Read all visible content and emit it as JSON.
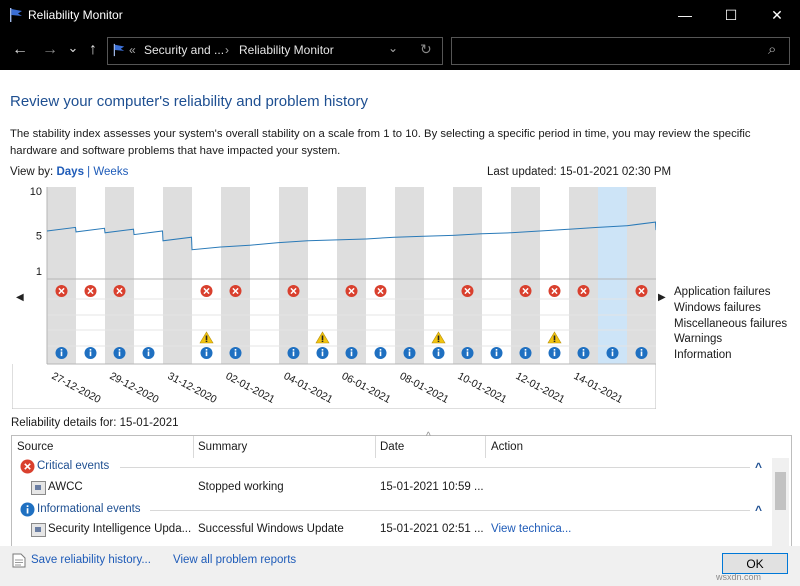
{
  "window": {
    "title": "Reliability Monitor",
    "minimize": "—",
    "maximize": "☐",
    "close": "✕"
  },
  "nav": {
    "back": "←",
    "forward": "→",
    "recent": "⌄",
    "up": "↑",
    "chevrons": "«",
    "crumb1": "Security and ...",
    "sep": "›",
    "crumb2": "Reliability Monitor",
    "dropdown": "⌄",
    "refresh": "↻",
    "search_icon": "⌕"
  },
  "page": {
    "heading": "Review your computer's reliability and problem history",
    "description": "The stability index assesses your system's overall stability on a scale from 1 to 10. By selecting a specific period in time, you may review the specific hardware and software problems that have impacted your system.",
    "view_by_label": "View by:",
    "view_days": "Days",
    "view_sep": "|",
    "view_weeks": "Weeks",
    "last_updated": "Last updated: 15-01-2021 02:30 PM"
  },
  "chart_data": {
    "type": "line",
    "y_ticks": [
      "10",
      "5",
      "1"
    ],
    "ylim": [
      1,
      10
    ],
    "selected_column": 19,
    "x_labels": [
      "27-12-2020",
      "29-12-2020",
      "31-12-2020",
      "02-01-2021",
      "04-01-2021",
      "06-01-2021",
      "08-01-2021",
      "10-01-2021",
      "12-01-2021",
      "14-01-2021"
    ],
    "stability_index": [
      5.5,
      5.4,
      5.3,
      5.1,
      4.4,
      3.4,
      3.7,
      3.9,
      4.2,
      4.4,
      4.5,
      4.6,
      4.8,
      4.9,
      5.0,
      5.2,
      5.3,
      5.5,
      5.7,
      5.9,
      6.1,
      5.6
    ],
    "rows": [
      "Application failures",
      "Windows failures",
      "Miscellaneous failures",
      "Warnings",
      "Information"
    ],
    "application_failures": [
      0,
      1,
      2,
      5,
      6,
      8,
      10,
      11,
      14,
      16,
      17,
      18,
      20
    ],
    "warnings": [
      5,
      9,
      13,
      17
    ],
    "information": [
      0,
      1,
      2,
      3,
      5,
      6,
      8,
      9,
      10,
      11,
      12,
      13,
      14,
      15,
      16,
      17,
      18,
      19,
      20
    ]
  },
  "details": {
    "title": "Reliability details for: 15-01-2021",
    "columns": {
      "source": "Source",
      "summary": "Summary",
      "date": "Date",
      "action": "Action"
    },
    "sort_caret": "^",
    "groups": [
      {
        "label": "Critical events",
        "rows": [
          {
            "source": "AWCC",
            "summary": "Stopped working",
            "date": "15-01-2021 10:59 ...",
            "action": ""
          }
        ]
      },
      {
        "label": "Informational events",
        "rows": [
          {
            "source": "Security Intelligence Upda...",
            "summary": "Successful Windows Update",
            "date": "15-01-2021 02:51 ...",
            "action": "View technica..."
          }
        ]
      }
    ],
    "collapse": "^"
  },
  "footer": {
    "save": "Save reliability history...",
    "view_all": "View all problem reports",
    "ok": "OK",
    "watermark": "wsxdn.com"
  }
}
